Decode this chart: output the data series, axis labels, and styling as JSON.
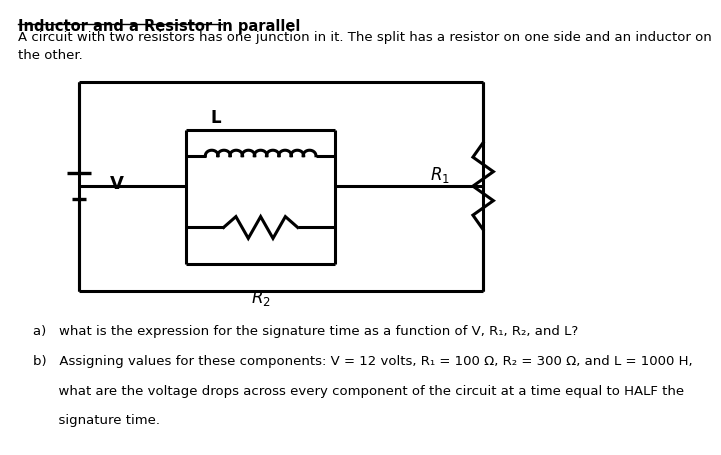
{
  "title": "Inductor and a Resistor in parallel",
  "description": "A circuit with two resistors has one junction in it. The split has a resistor on one side and an inductor on\nthe other.",
  "question_a": "a)   what is the expression for the signature time as a function of V, R₁, R₂, and L?",
  "question_b_line1": "b)   Assigning values for these components: V = 12 volts, R₁ = 100 Ω, R₂ = 300 Ω, and L = 1000 H,",
  "question_b_line2": "      what are the voltage drops across every component of the circuit at a time equal to HALF the",
  "question_b_line3": "      signature time.",
  "bg_color": "#ffffff",
  "line_color": "#000000",
  "font_size_title": 10.5,
  "font_size_text": 9.5,
  "OL": 0.135,
  "OR": 0.925,
  "OT": 0.835,
  "OB": 0.355,
  "IL": 0.345,
  "IR": 0.635,
  "IT": 0.725,
  "IB": 0.415
}
